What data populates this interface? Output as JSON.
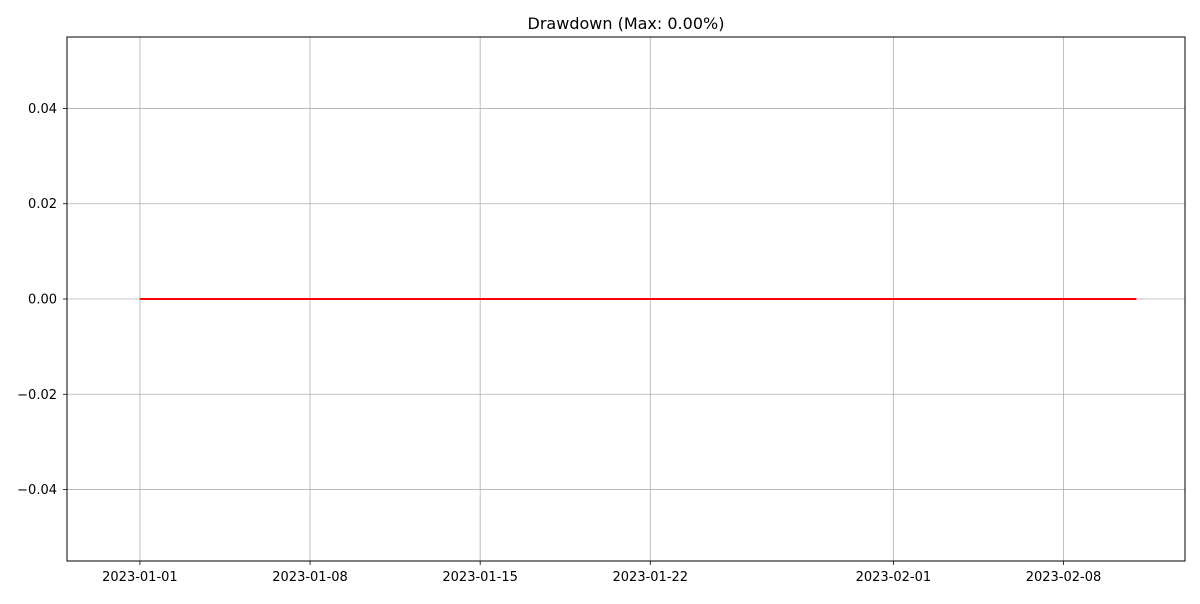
{
  "chart_data": {
    "type": "line",
    "title": "Drawdown (Max: 0.00%)",
    "xlabel": "",
    "ylabel": "",
    "grid": true,
    "x_axis": {
      "kind": "date",
      "range": [
        "2022-12-29",
        "2023-02-13"
      ],
      "ticks": [
        "2023-01-01",
        "2023-01-08",
        "2023-01-15",
        "2023-01-22",
        "2023-02-01",
        "2023-02-08"
      ]
    },
    "y_axis": {
      "range": [
        -0.055,
        0.055
      ],
      "ticks": [
        -0.04,
        -0.02,
        0.0,
        0.02,
        0.04
      ],
      "tick_labels": [
        "−0.04",
        "−0.02",
        "0.00",
        "0.02",
        "0.04"
      ]
    },
    "series": [
      {
        "color": "#ff0000",
        "x": [
          "2023-01-01",
          "2023-02-11"
        ],
        "values": [
          0.0,
          0.0
        ]
      }
    ]
  }
}
